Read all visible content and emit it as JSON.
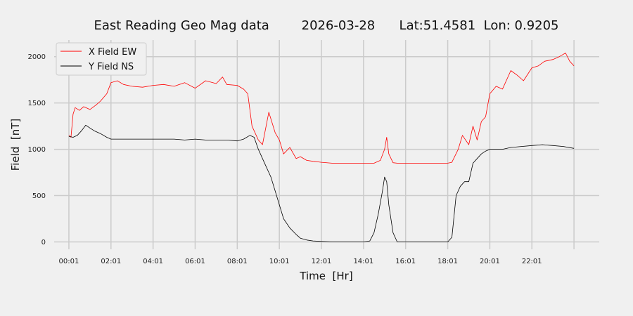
{
  "chart_data": {
    "type": "line",
    "title": "East Reading Geo Mag data        2026-03-28      Lat:51.4581  Lon: 0.9205",
    "xlabel": "Time  [Hr]",
    "ylabel": "Field  [nT]",
    "x_unit": "hours",
    "xlim": [
      -0.7,
      25.2
    ],
    "ylim": [
      -80,
      2180
    ],
    "x_ticks": [
      {
        "value": 0,
        "label": "00:01"
      },
      {
        "value": 2,
        "label": "02:01"
      },
      {
        "value": 4,
        "label": "04:01"
      },
      {
        "value": 6,
        "label": "06:01"
      },
      {
        "value": 8,
        "label": "08:01"
      },
      {
        "value": 10,
        "label": "10:01"
      },
      {
        "value": 12,
        "label": "12:01"
      },
      {
        "value": 14,
        "label": "14:01"
      },
      {
        "value": 16,
        "label": "16:01"
      },
      {
        "value": 18,
        "label": "18:01"
      },
      {
        "value": 20,
        "label": "20:01"
      },
      {
        "value": 22,
        "label": "22:01"
      }
    ],
    "x_gridlines": [
      0,
      2,
      4,
      6,
      8,
      10,
      12,
      14,
      16,
      18,
      20,
      22,
      24
    ],
    "y_ticks": [
      0,
      500,
      1000,
      1500,
      2000
    ],
    "grid": true,
    "legend": "top-left",
    "series": [
      {
        "name": "X Field EW",
        "color": "#ff0000",
        "x": [
          0,
          0.1,
          0.2,
          0.3,
          0.5,
          0.7,
          1.0,
          1.3,
          1.5,
          1.8,
          2.0,
          2.3,
          2.6,
          3.0,
          3.5,
          4.0,
          4.5,
          5.0,
          5.5,
          6.0,
          6.5,
          7.0,
          7.3,
          7.5,
          8.0,
          8.3,
          8.5,
          8.7,
          9.0,
          9.2,
          9.5,
          9.8,
          10.0,
          10.2,
          10.5,
          10.8,
          11.0,
          11.3,
          11.6,
          12.0,
          12.5,
          13.0,
          13.5,
          14.0,
          14.5,
          14.8,
          15.0,
          15.1,
          15.2,
          15.4,
          15.6,
          16.0,
          16.5,
          17.0,
          17.5,
          18.0,
          18.2,
          18.5,
          18.7,
          19.0,
          19.2,
          19.4,
          19.6,
          19.8,
          20.0,
          20.3,
          20.6,
          21.0,
          21.3,
          21.6,
          22.0,
          22.3,
          22.6,
          23.0,
          23.3,
          23.6,
          23.8,
          24.0
        ],
        "y": [
          1150,
          1130,
          1380,
          1450,
          1420,
          1460,
          1430,
          1480,
          1520,
          1600,
          1720,
          1740,
          1700,
          1680,
          1670,
          1690,
          1700,
          1680,
          1720,
          1660,
          1740,
          1710,
          1780,
          1700,
          1690,
          1650,
          1600,
          1250,
          1100,
          1050,
          1400,
          1180,
          1100,
          950,
          1020,
          900,
          920,
          880,
          870,
          860,
          850,
          850,
          850,
          850,
          850,
          880,
          1000,
          1130,
          950,
          855,
          850,
          850,
          850,
          850,
          850,
          850,
          860,
          1000,
          1150,
          1050,
          1250,
          1100,
          1300,
          1350,
          1600,
          1680,
          1650,
          1850,
          1800,
          1740,
          1880,
          1900,
          1950,
          1970,
          2000,
          2040,
          1950,
          1900
        ]
      },
      {
        "name": "Y Field NS",
        "color": "#000000",
        "x": [
          0,
          0.2,
          0.4,
          0.6,
          0.8,
          1.0,
          1.2,
          1.5,
          1.8,
          2.0,
          2.5,
          3.0,
          3.5,
          4.0,
          4.5,
          5.0,
          5.5,
          6.0,
          6.5,
          7.0,
          7.5,
          8.0,
          8.3,
          8.6,
          8.8,
          9.0,
          9.3,
          9.6,
          9.8,
          10.0,
          10.2,
          10.5,
          10.8,
          11.0,
          11.3,
          11.6,
          12.0,
          12.5,
          13.0,
          13.5,
          14.0,
          14.3,
          14.5,
          14.7,
          14.9,
          15.0,
          15.1,
          15.2,
          15.4,
          15.6,
          16.0,
          16.5,
          17.0,
          17.5,
          18.0,
          18.2,
          18.4,
          18.6,
          18.8,
          19.0,
          19.2,
          19.4,
          19.6,
          19.8,
          20.0,
          20.3,
          20.6,
          21.0,
          21.5,
          22.0,
          22.5,
          23.0,
          23.5,
          24.0
        ],
        "y": [
          1140,
          1130,
          1150,
          1200,
          1260,
          1230,
          1200,
          1170,
          1130,
          1110,
          1110,
          1110,
          1110,
          1110,
          1110,
          1110,
          1100,
          1110,
          1100,
          1100,
          1100,
          1090,
          1110,
          1150,
          1130,
          1000,
          850,
          700,
          550,
          400,
          250,
          150,
          80,
          40,
          20,
          10,
          5,
          0,
          0,
          0,
          0,
          10,
          100,
          300,
          550,
          700,
          650,
          400,
          100,
          0,
          0,
          0,
          0,
          0,
          0,
          50,
          500,
          600,
          650,
          650,
          850,
          900,
          950,
          980,
          1000,
          1000,
          1000,
          1020,
          1030,
          1040,
          1050,
          1040,
          1030,
          1010
        ]
      }
    ]
  }
}
